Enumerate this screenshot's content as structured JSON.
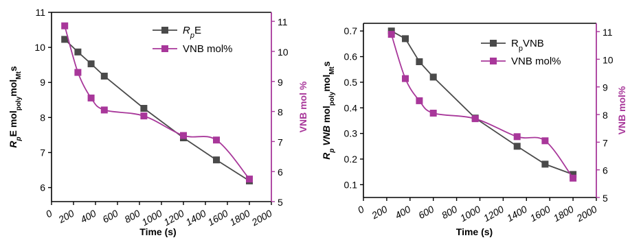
{
  "chart_data": [
    {
      "type": "line",
      "x_axis": {
        "label": "Time (s)",
        "range": [
          0,
          2000
        ],
        "ticks": [
          "0",
          "200",
          "400",
          "600",
          "800",
          "1000",
          "1200",
          "1400",
          "1600",
          "1800",
          "2000"
        ]
      },
      "y_left": {
        "label_parts": [
          {
            "text": "R",
            "style": "italic"
          },
          {
            "text": "p",
            "style": "sub-italic"
          },
          {
            "text": "E mol",
            "style": "normal"
          },
          {
            "text": "poly",
            "style": "sub"
          },
          {
            "text": "mol",
            "style": "normal"
          },
          {
            "text": "Mt",
            "style": "sub"
          },
          {
            "text": "s",
            "style": "normal"
          }
        ],
        "range": [
          5.6,
          11
        ],
        "ticks": [
          "6",
          "7",
          "8",
          "9",
          "10",
          "11"
        ],
        "color": "#000000"
      },
      "y_right": {
        "label": "VNB mol %",
        "range": [
          5,
          11.3
        ],
        "ticks": [
          "5",
          "6",
          "7",
          "8",
          "9",
          "10",
          "11"
        ],
        "color": "#a8379a"
      },
      "legend_position": "top-right",
      "series": [
        {
          "name": "RpE",
          "legend_parts": [
            {
              "text": "R",
              "style": "italic"
            },
            {
              "text": "p",
              "style": "sub-italic"
            },
            {
              "text": "E",
              "style": "normal"
            }
          ],
          "axis": "left",
          "marker": "square",
          "color": "#4a4a4a",
          "x": [
            120,
            240,
            360,
            480,
            840,
            1200,
            1500,
            1800
          ],
          "y": [
            10.23,
            9.87,
            9.53,
            9.18,
            8.26,
            7.42,
            6.79,
            6.19
          ]
        },
        {
          "name": "VNB mol%",
          "legend_parts": [
            {
              "text": "VNB mol%",
              "style": "normal"
            }
          ],
          "axis": "right",
          "marker": "square",
          "color": "#a8379a",
          "x": [
            120,
            240,
            360,
            480,
            840,
            1200,
            1500,
            1800
          ],
          "y": [
            10.85,
            9.3,
            8.45,
            8.05,
            7.85,
            7.2,
            7.05,
            5.75
          ]
        }
      ]
    },
    {
      "type": "line",
      "x_axis": {
        "label": "Time (s)",
        "range": [
          0,
          2000
        ],
        "ticks": [
          "0",
          "200",
          "400",
          "600",
          "800",
          "1000",
          "1200",
          "1400",
          "1600",
          "1800",
          "2000"
        ]
      },
      "y_left": {
        "label_parts": [
          {
            "text": "R",
            "style": "italic"
          },
          {
            "text": "p",
            "style": "sub-italic"
          },
          {
            "text": " VNB",
            "style": "italic"
          },
          {
            "text": " mol",
            "style": "normal"
          },
          {
            "text": "poly",
            "style": "sub"
          },
          {
            "text": "mol",
            "style": "normal"
          },
          {
            "text": "Mt",
            "style": "sub"
          },
          {
            "text": "s",
            "style": "normal"
          }
        ],
        "range": [
          0.05,
          0.73
        ],
        "ticks": [
          "0.1",
          "0.2",
          "0.3",
          "0.4",
          "0.5",
          "0.6",
          "0.7"
        ],
        "color": "#000000"
      },
      "y_right": {
        "label": "VNB mol%",
        "range": [
          5,
          11.3
        ],
        "ticks": [
          "5",
          "6",
          "7",
          "8",
          "9",
          "10",
          "11"
        ],
        "color": "#a8379a"
      },
      "legend_position": "top-right",
      "series": [
        {
          "name": "RpVNB",
          "legend_parts": [
            {
              "text": "R",
              "style": "normal"
            },
            {
              "text": "p",
              "style": "sub"
            },
            {
              "text": "VNB",
              "style": "normal"
            }
          ],
          "axis": "left",
          "marker": "square",
          "color": "#4a4a4a",
          "x": [
            240,
            360,
            480,
            600,
            960,
            1320,
            1560,
            1800
          ],
          "y": [
            0.7,
            0.67,
            0.58,
            0.52,
            0.36,
            0.25,
            0.18,
            0.14
          ]
        },
        {
          "name": "VNB mol%",
          "legend_parts": [
            {
              "text": "VNB mol%",
              "style": "normal"
            }
          ],
          "axis": "right",
          "marker": "square",
          "color": "#a8379a",
          "x": [
            240,
            360,
            480,
            600,
            960,
            1320,
            1560,
            1800
          ],
          "y": [
            10.9,
            9.3,
            8.5,
            8.05,
            7.85,
            7.2,
            7.05,
            5.7
          ]
        }
      ]
    }
  ]
}
